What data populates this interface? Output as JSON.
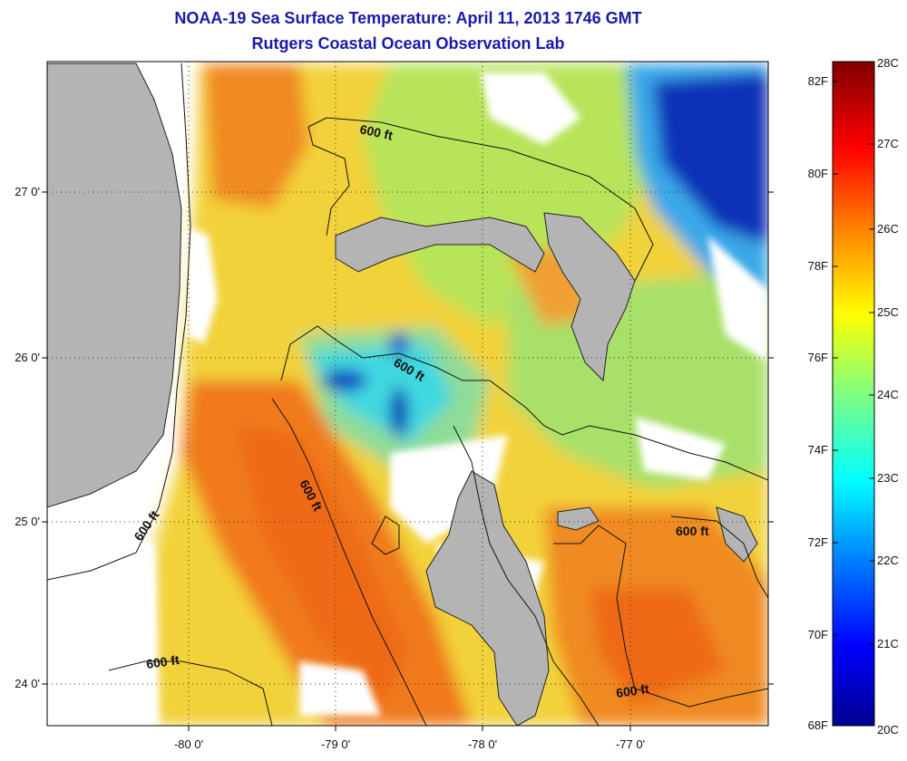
{
  "header": {
    "title": "NOAA-19 Sea Surface Temperature:  April 11, 2013 1746 GMT",
    "subtitle": "Rutgers Coastal Ocean Observation Lab"
  },
  "axes": {
    "lat_labels": [
      "27 0'",
      "26 0'",
      "25 0'",
      "24 0'"
    ],
    "lon_labels": [
      "-80 0'",
      "-79 0'",
      "-78 0'",
      "-77 0'"
    ],
    "lat_range": [
      23.75,
      27.8
    ],
    "lon_range": [
      -81.0,
      -76.0
    ]
  },
  "contours": {
    "label": "600 ft"
  },
  "colorbar": {
    "fahrenheit_labels": [
      "82F",
      "80F",
      "78F",
      "76F",
      "74F",
      "72F",
      "70F",
      "68F"
    ],
    "celsius_labels": [
      "28C",
      "27C",
      "26C",
      "25C",
      "24C",
      "23C",
      "22C",
      "21C",
      "20C"
    ],
    "range_c": [
      20,
      28
    ],
    "range_f": [
      68,
      82.4
    ]
  },
  "colors": {
    "title": "#1a1aa8",
    "land": "#b4b4b4",
    "no_data": "#ffffff",
    "warm": "#f07a1a",
    "mid": "#f2d23a",
    "cool": "#9fe07a",
    "cold": "#1040c0"
  }
}
